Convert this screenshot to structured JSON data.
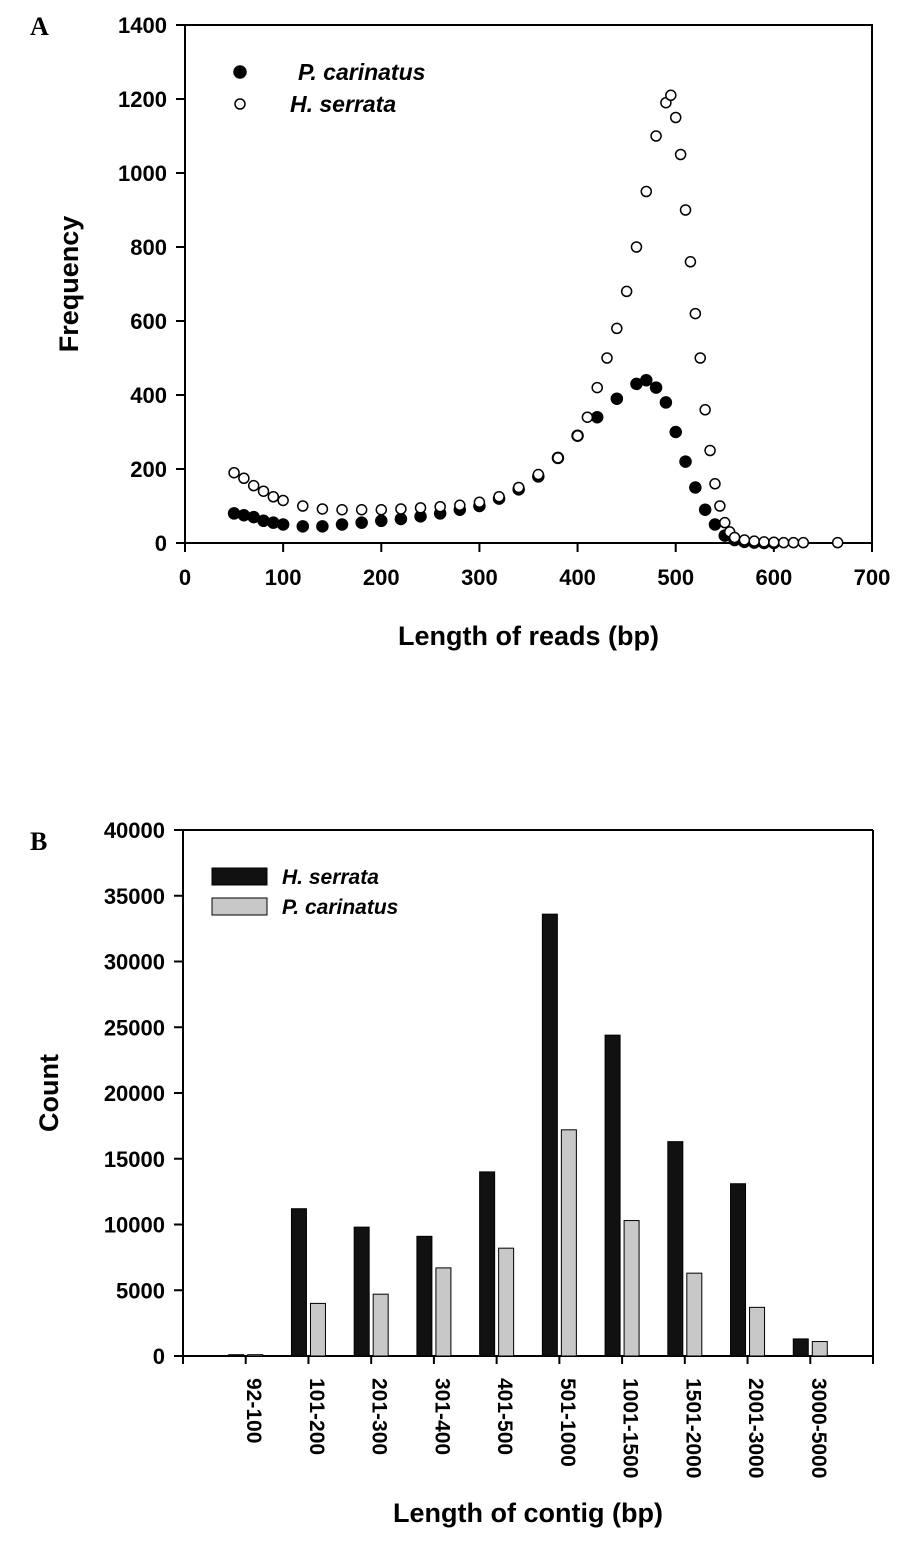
{
  "chart_data": [
    {
      "type": "scatter",
      "panel_label": "A",
      "xlabel": "Length of reads (bp)",
      "ylabel": "Frequency",
      "xlim": [
        0,
        700
      ],
      "ylim": [
        0,
        1400
      ],
      "x_ticks": [
        "0",
        "100",
        "200",
        "300",
        "400",
        "500",
        "600",
        "700"
      ],
      "y_ticks": [
        "0",
        "200",
        "400",
        "600",
        "800",
        "1000",
        "1200",
        "1400"
      ],
      "grid": false,
      "legend_position": "top-left",
      "series": [
        {
          "name": "P. carinatus",
          "marker": "filled-circle",
          "color": "#000000",
          "points": [
            [
              50,
              80
            ],
            [
              60,
              75
            ],
            [
              70,
              70
            ],
            [
              80,
              60
            ],
            [
              90,
              55
            ],
            [
              100,
              50
            ],
            [
              120,
              45
            ],
            [
              140,
              45
            ],
            [
              160,
              50
            ],
            [
              180,
              55
            ],
            [
              200,
              60
            ],
            [
              220,
              65
            ],
            [
              240,
              72
            ],
            [
              260,
              80
            ],
            [
              280,
              90
            ],
            [
              300,
              100
            ],
            [
              320,
              120
            ],
            [
              340,
              145
            ],
            [
              360,
              180
            ],
            [
              380,
              230
            ],
            [
              400,
              290
            ],
            [
              420,
              340
            ],
            [
              440,
              390
            ],
            [
              460,
              430
            ],
            [
              470,
              440
            ],
            [
              480,
              420
            ],
            [
              490,
              380
            ],
            [
              500,
              300
            ],
            [
              510,
              220
            ],
            [
              520,
              150
            ],
            [
              530,
              90
            ],
            [
              540,
              50
            ],
            [
              550,
              20
            ],
            [
              560,
              8
            ],
            [
              570,
              3
            ],
            [
              580,
              1
            ],
            [
              590,
              0
            ],
            [
              600,
              0
            ]
          ]
        },
        {
          "name": "H. serrata",
          "marker": "open-circle",
          "color": "#000000",
          "points": [
            [
              50,
              190
            ],
            [
              60,
              175
            ],
            [
              70,
              155
            ],
            [
              80,
              140
            ],
            [
              90,
              125
            ],
            [
              100,
              115
            ],
            [
              120,
              100
            ],
            [
              140,
              92
            ],
            [
              160,
              90
            ],
            [
              180,
              90
            ],
            [
              200,
              90
            ],
            [
              220,
              92
            ],
            [
              240,
              95
            ],
            [
              260,
              98
            ],
            [
              280,
              102
            ],
            [
              300,
              110
            ],
            [
              320,
              125
            ],
            [
              340,
              150
            ],
            [
              360,
              185
            ],
            [
              380,
              230
            ],
            [
              400,
              290
            ],
            [
              410,
              340
            ],
            [
              420,
              420
            ],
            [
              430,
              500
            ],
            [
              440,
              580
            ],
            [
              450,
              680
            ],
            [
              460,
              800
            ],
            [
              470,
              950
            ],
            [
              480,
              1100
            ],
            [
              490,
              1190
            ],
            [
              495,
              1210
            ],
            [
              500,
              1150
            ],
            [
              505,
              1050
            ],
            [
              510,
              900
            ],
            [
              515,
              760
            ],
            [
              520,
              620
            ],
            [
              525,
              500
            ],
            [
              530,
              360
            ],
            [
              535,
              250
            ],
            [
              540,
              160
            ],
            [
              545,
              100
            ],
            [
              550,
              55
            ],
            [
              555,
              30
            ],
            [
              560,
              15
            ],
            [
              570,
              8
            ],
            [
              580,
              5
            ],
            [
              590,
              3
            ],
            [
              600,
              2
            ],
            [
              610,
              1
            ],
            [
              620,
              1
            ],
            [
              630,
              1
            ],
            [
              665,
              1
            ]
          ]
        }
      ]
    },
    {
      "type": "bar",
      "panel_label": "B",
      "xlabel": "Length of contig (bp)",
      "ylabel": "Count",
      "ylim": [
        0,
        40000
      ],
      "y_ticks": [
        "0",
        "5000",
        "10000",
        "15000",
        "20000",
        "25000",
        "30000",
        "35000",
        "40000"
      ],
      "grid": false,
      "legend_position": "top-left",
      "categories": [
        "92-100",
        "101-200",
        "201-300",
        "301-400",
        "401-500",
        "501-1000",
        "1001-1500",
        "1501-2000",
        "2001-3000",
        "3000-5000"
      ],
      "series": [
        {
          "name": "H. serrata",
          "color": "#111111",
          "values": [
            100,
            11200,
            9800,
            9100,
            14000,
            33600,
            24400,
            16300,
            13100,
            1300
          ]
        },
        {
          "name": "P. carinatus",
          "color": "#c8c8c8",
          "values": [
            100,
            4000,
            4700,
            6700,
            8200,
            17200,
            10300,
            6300,
            3700,
            1100
          ]
        }
      ]
    }
  ]
}
